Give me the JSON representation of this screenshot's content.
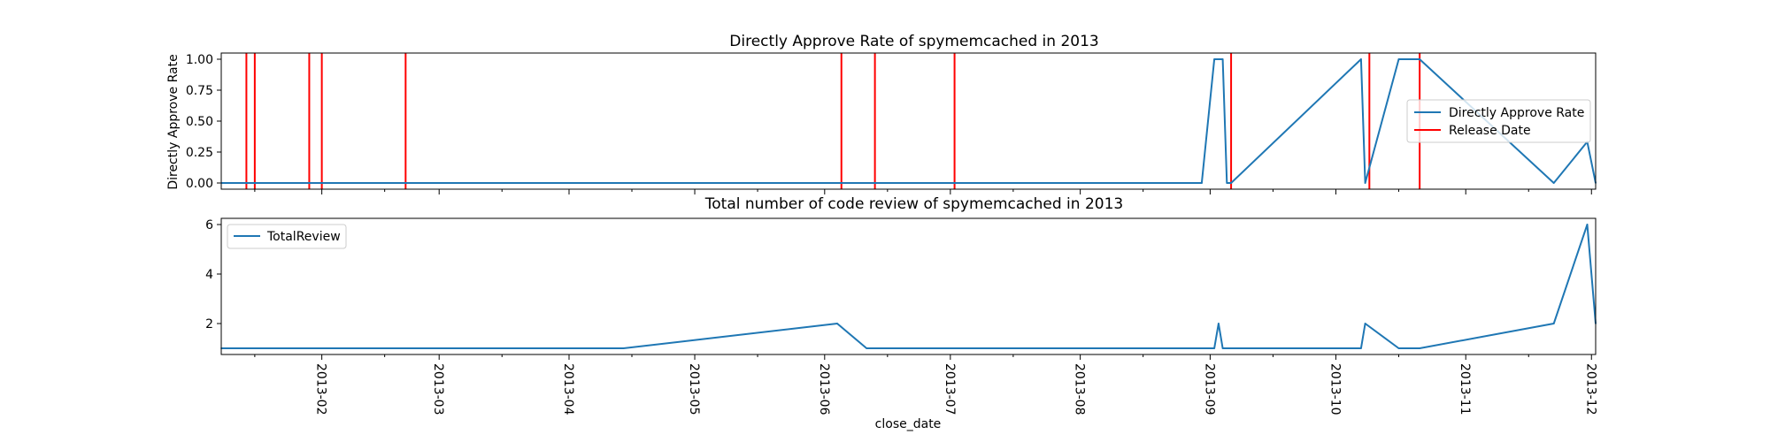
{
  "chart_data": [
    {
      "type": "line",
      "title": "Directly Approve Rate of spymemcached in 2013",
      "xlabel": "",
      "ylabel": "Directly Approve Rate",
      "xlim": [
        "2013-01-08",
        "2013-12-02"
      ],
      "ylim": [
        -0.05,
        1.05
      ],
      "yticks": [
        "0.00",
        "0.25",
        "0.50",
        "0.75",
        "1.00"
      ],
      "legend": {
        "placement": "center-right",
        "entries": [
          "Directly Approve Rate",
          "Release Date"
        ]
      },
      "series": [
        {
          "name": "Directly Approve Rate",
          "color": "#1f77b4",
          "x": [
            "2013-01-08",
            "2013-08-30",
            "2013-09-02",
            "2013-09-04",
            "2013-09-05",
            "2013-09-06",
            "2013-10-07",
            "2013-10-08",
            "2013-10-16",
            "2013-10-21",
            "2013-11-22",
            "2013-11-30",
            "2013-12-02"
          ],
          "y": [
            0,
            0,
            1,
            1,
            0,
            0,
            1,
            0,
            1,
            1,
            0,
            0.333,
            0
          ]
        }
      ],
      "release_dates": {
        "name": "Release Date",
        "color": "#ff0000",
        "dates": [
          "2013-01-14",
          "2013-01-16",
          "2013-01-29",
          "2013-02-01",
          "2013-02-21",
          "2013-06-05",
          "2013-06-13",
          "2013-07-02",
          "2013-09-06",
          "2013-10-09",
          "2013-10-21"
        ]
      }
    },
    {
      "type": "line",
      "title": "Total number of code review of spymemcached in 2013",
      "xlabel": "close_date",
      "ylabel": "",
      "xlim": [
        "2013-01-08",
        "2013-12-02"
      ],
      "ylim": [
        0.75,
        6.25
      ],
      "yticks": [
        "2",
        "4",
        "6"
      ],
      "xticks": [
        "2013-02",
        "2013-03",
        "2013-04",
        "2013-05",
        "2013-06",
        "2013-07",
        "2013-08",
        "2013-09",
        "2013-10",
        "2013-11",
        "2013-12"
      ],
      "legend": {
        "placement": "upper-left",
        "entries": [
          "TotalReview"
        ]
      },
      "series": [
        {
          "name": "TotalReview",
          "color": "#1f77b4",
          "x": [
            "2013-01-08",
            "2013-04-14",
            "2013-06-04",
            "2013-06-11",
            "2013-09-02",
            "2013-09-03",
            "2013-09-04",
            "2013-10-07",
            "2013-10-08",
            "2013-10-16",
            "2013-10-21",
            "2013-11-22",
            "2013-11-30",
            "2013-12-02"
          ],
          "y": [
            1,
            1,
            2,
            1,
            1,
            2,
            1,
            1,
            2,
            1,
            1,
            2,
            6,
            2
          ]
        }
      ]
    }
  ]
}
